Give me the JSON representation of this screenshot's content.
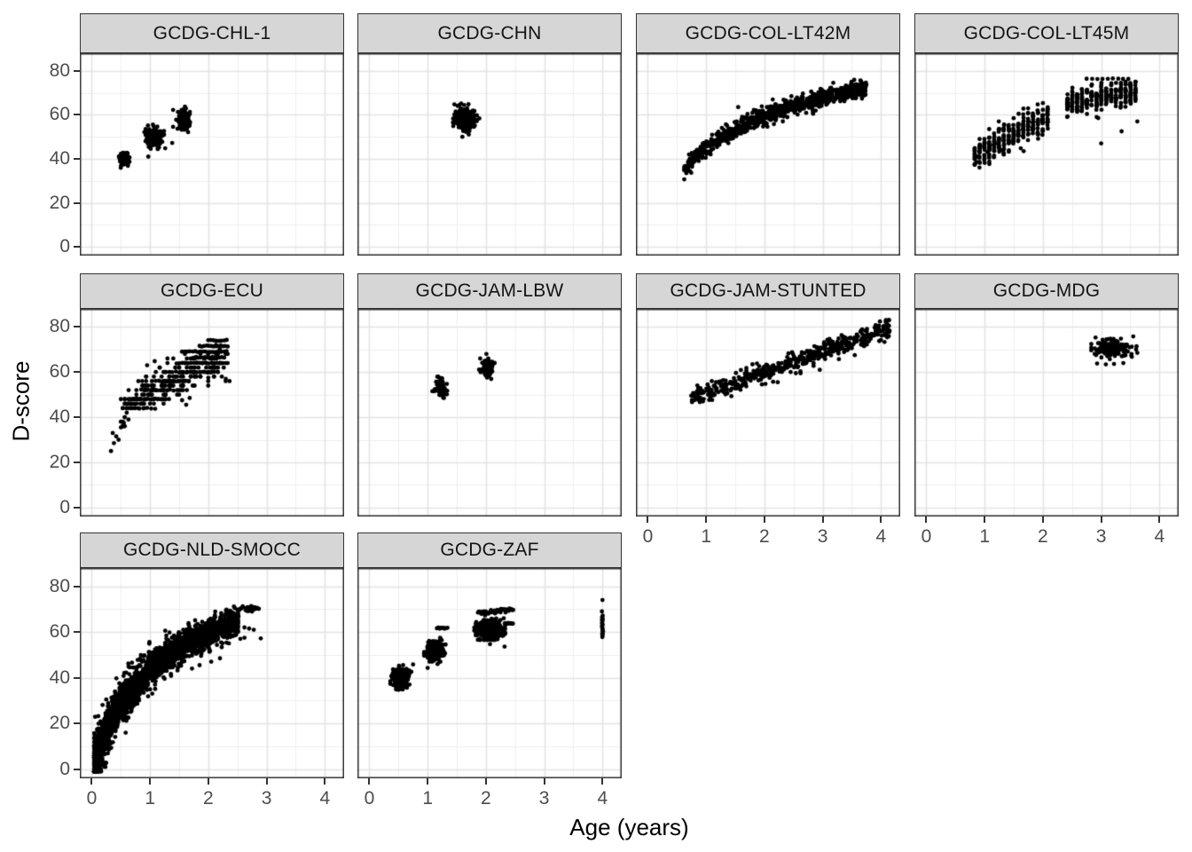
{
  "figure": {
    "xlabel": "Age (years)",
    "ylabel": "D-score"
  },
  "colors": {
    "background": "#FFFFFF",
    "strip_fill": "#D6D6D6",
    "panel_border": "#333333",
    "grid_major": "#E4E4E4",
    "grid_minor": "#F0F0F0",
    "point": "#000000",
    "tick_mark": "#333333",
    "tick_text": "#4D4D4D",
    "title_text": "#000000"
  },
  "chart_data": {
    "type": "scatter",
    "title": "",
    "xlabel": "Age (years)",
    "ylabel": "D-score",
    "x_ticks": [
      0,
      1,
      2,
      3,
      4
    ],
    "y_ticks": [
      0,
      20,
      40,
      60,
      80
    ],
    "x_minor": [
      0.5,
      1.5,
      2.5,
      3.5
    ],
    "y_minor": [
      10,
      30,
      50,
      70
    ],
    "xlim": [
      -0.205,
      4.33
    ],
    "ylim": [
      -4,
      88
    ],
    "grid": true,
    "legend": false,
    "facets": [
      {
        "label": "GCDG-CHL-1",
        "row": 0,
        "col": 0,
        "x_axis": false,
        "y_axis": true,
        "clusters": [
          {
            "kind": "blob",
            "x": 0.55,
            "y": 39.8,
            "sx": 0.045,
            "sy": 1.4,
            "n": 70
          },
          {
            "kind": "blob",
            "x": 1.07,
            "y": 49.5,
            "sx": 0.075,
            "sy": 2.1,
            "n": 140
          },
          {
            "kind": "blob",
            "x": 1.58,
            "y": 57.5,
            "sx": 0.065,
            "sy": 2.5,
            "n": 120
          },
          {
            "kind": "pts",
            "pts": [
              [
                0.97,
                41
              ],
              [
                1.38,
                47.2
              ],
              [
                1.26,
                44.8
              ],
              [
                1.13,
                44.5
              ]
            ]
          }
        ]
      },
      {
        "label": "GCDG-CHN",
        "row": 0,
        "col": 1,
        "x_axis": false,
        "y_axis": false,
        "clusters": [
          {
            "kind": "blob",
            "x": 1.63,
            "y": 58,
            "sx": 0.085,
            "sy": 2.6,
            "n": 320,
            "clampX": [
              1.36,
              1.92
            ],
            "clampY": [
              50,
              66
            ]
          }
        ]
      },
      {
        "label": "GCDG-COL-LT42M",
        "row": 0,
        "col": 2,
        "x_axis": false,
        "y_axis": false,
        "clusters": [
          {
            "kind": "band",
            "x0": 0.62,
            "x1": 3.75,
            "n": 850,
            "sy": 2.0,
            "f": [
              "log",
              44.9,
              20.7
            ],
            "xpow": 0.85
          },
          {
            "kind": "pts",
            "pts": [
              [
                1.55,
                63.5
              ],
              [
                0.66,
                33.5
              ],
              [
                0.72,
                34.5
              ]
            ]
          }
        ]
      },
      {
        "label": "GCDG-COL-LT45M",
        "row": 0,
        "col": 3,
        "x_axis": false,
        "y_axis": false,
        "clusters": [
          {
            "kind": "columns",
            "x0": 0.83,
            "step": 0.0833,
            "k": 16,
            "nper": 17,
            "sy": 3.3,
            "f": [
              "lin",
              31.5,
              13
            ],
            "clampY": [
              36,
              68
            ]
          },
          {
            "kind": "columns",
            "x0": 2.42,
            "step": 0.0833,
            "k": 15,
            "nper": 18,
            "sy": 2.7,
            "f": [
              "lin",
              55,
              4.2
            ],
            "clampY": [
              59,
              75
            ]
          },
          {
            "kind": "hrow",
            "y": 76.5,
            "x0": 2.75,
            "x1": 3.55,
            "step": 0.09
          },
          {
            "kind": "pts",
            "pts": [
              [
                0.86,
                38.5
              ],
              [
                0.88,
                41
              ],
              [
                1.05,
                43
              ],
              [
                1.3,
                44
              ],
              [
                1.33,
                42
              ],
              [
                1.62,
                44.8
              ],
              [
                1.67,
                43.5
              ],
              [
                1.23,
                47
              ],
              [
                3.0,
                47
              ],
              [
                3.35,
                52.5
              ],
              [
                3.62,
                57
              ],
              [
                2.95,
                58.5
              ]
            ]
          }
        ]
      },
      {
        "label": "GCDG-ECU",
        "row": 1,
        "col": 0,
        "x_axis": false,
        "y_axis": true,
        "clusters": [
          {
            "kind": "band",
            "x0": 0.5,
            "x1": 2.35,
            "n": 240,
            "sy": 4.2,
            "f": [
              "log",
              52,
              16
            ],
            "snapY": 2,
            "snapX": 0.0333
          },
          {
            "kind": "hrow",
            "y": 74,
            "x0": 2.0,
            "x1": 2.32,
            "step": 0.045
          },
          {
            "kind": "hrow",
            "y": 71.5,
            "x0": 1.85,
            "x1": 2.35,
            "step": 0.04
          },
          {
            "kind": "hrow",
            "y": 69,
            "x0": 1.55,
            "x1": 2.35,
            "step": 0.045
          },
          {
            "kind": "hrow",
            "y": 66.5,
            "x0": 1.75,
            "x1": 2.3,
            "step": 0.04
          },
          {
            "kind": "hrow",
            "y": 64,
            "x0": 1.45,
            "x1": 2.28,
            "step": 0.05
          },
          {
            "kind": "hrow",
            "y": 60,
            "x0": 1.38,
            "x1": 2.2,
            "step": 0.06
          },
          {
            "kind": "hrow",
            "y": 56,
            "x0": 1.1,
            "x1": 1.65,
            "step": 0.05
          },
          {
            "kind": "hrow",
            "y": 52,
            "x0": 0.85,
            "x1": 1.45,
            "step": 0.055
          },
          {
            "kind": "hrow",
            "y": 48,
            "x0": 0.72,
            "x1": 1.35,
            "step": 0.06
          },
          {
            "kind": "hrow",
            "y": 44,
            "x0": 0.6,
            "x1": 1.1,
            "step": 0.07
          },
          {
            "kind": "pts",
            "pts": [
              [
                0.33,
                25
              ],
              [
                0.38,
                28.5
              ],
              [
                0.42,
                31.5
              ],
              [
                0.36,
                33
              ],
              [
                0.5,
                35.5
              ],
              [
                0.46,
                30
              ],
              [
                0.55,
                37.5
              ],
              [
                0.63,
                39
              ],
              [
                0.95,
                63
              ],
              [
                1.08,
                64.8
              ],
              [
                1.55,
                47.5
              ],
              [
                1.68,
                48.5
              ],
              [
                1.62,
                45.5
              ],
              [
                2.0,
                57.5
              ],
              [
                2.3,
                57
              ]
            ]
          }
        ]
      },
      {
        "label": "GCDG-JAM-LBW",
        "row": 1,
        "col": 1,
        "x_axis": false,
        "y_axis": false,
        "clusters": [
          {
            "kind": "blob",
            "x": 1.22,
            "y": 53,
            "sx": 0.05,
            "sy": 2.0,
            "n": 75,
            "clampY": [
              48.5,
              58
            ]
          },
          {
            "kind": "blob",
            "x": 2.03,
            "y": 62,
            "sx": 0.05,
            "sy": 2.5,
            "n": 85,
            "clampY": [
              56,
              68
            ]
          },
          {
            "kind": "pts",
            "pts": [
              [
                1.08,
                51.5
              ]
            ]
          }
        ]
      },
      {
        "label": "GCDG-JAM-STUNTED",
        "row": 1,
        "col": 2,
        "x_axis": true,
        "y_axis": false,
        "clusters": [
          {
            "kind": "band",
            "x0": 0.72,
            "x1": 4.15,
            "n": 520,
            "sy": 2.1,
            "f": [
              "lin",
              41.5,
              9.2
            ],
            "xpow": 0.85,
            "clampY": [
              44,
              83
            ]
          },
          {
            "kind": "pts",
            "pts": [
              [
                2.45,
                60
              ],
              [
                2.62,
                59.5
              ],
              [
                2.95,
                61
              ],
              [
                3.55,
                67.5
              ]
            ]
          }
        ]
      },
      {
        "label": "GCDG-MDG",
        "row": 1,
        "col": 3,
        "x_axis": true,
        "y_axis": false,
        "clusters": [
          {
            "kind": "blob",
            "x": 3.2,
            "y": 70.3,
            "sx": 0.16,
            "sy": 1.9,
            "n": 175,
            "clampX": [
              2.83,
              3.62
            ],
            "clampY": [
              64.8,
              76.5
            ]
          },
          {
            "kind": "pts",
            "pts": [
              [
                2.93,
                63.8
              ],
              [
                3.08,
                63.4
              ],
              [
                3.22,
                63.6
              ],
              [
                3.38,
                64
              ],
              [
                3.55,
                75.8
              ]
            ]
          }
        ]
      },
      {
        "label": "GCDG-NLD-SMOCC",
        "row": 2,
        "col": 0,
        "x_axis": true,
        "y_axis": true,
        "clusters": [
          {
            "kind": "band",
            "x0": 0.04,
            "x1": 2.52,
            "n": 2100,
            "f": [
              "mm",
              95,
              1.2
            ],
            "sy": "var",
            "sy0": 3,
            "sy1": 3.2,
            "syk": 1.3,
            "xpow": 1.45,
            "clampY": [
              -1,
              86
            ]
          },
          {
            "kind": "band",
            "x0": 2.5,
            "x1": 2.88,
            "n": 30,
            "sy": 0.5,
            "f": [
              "lin",
              62.5,
              2.8
            ]
          },
          {
            "kind": "pts",
            "pts": [
              [
                2.62,
                62
              ],
              [
                2.7,
                61.5
              ],
              [
                2.78,
                61
              ],
              [
                2.55,
                57
              ],
              [
                2.62,
                57.5
              ],
              [
                2.9,
                57.2
              ],
              [
                2.05,
                47
              ],
              [
                2.2,
                48.5
              ],
              [
                1.85,
                45.5
              ],
              [
                1.72,
                44
              ]
            ]
          }
        ]
      },
      {
        "label": "GCDG-ZAF",
        "row": 2,
        "col": 1,
        "x_axis": true,
        "y_axis": false,
        "clusters": [
          {
            "kind": "blob",
            "x": 0.53,
            "y": 39.8,
            "sx": 0.07,
            "sy": 2.1,
            "n": 230,
            "clampX": [
              0.36,
              0.72
            ],
            "clampY": [
              34.5,
              45.5
            ]
          },
          {
            "kind": "blob",
            "x": 1.13,
            "y": 52,
            "sx": 0.075,
            "sy": 2.2,
            "n": 260,
            "clampX": [
              0.94,
              1.33
            ],
            "clampY": [
              47,
              57.5
            ]
          },
          {
            "kind": "hrow",
            "y": 61.7,
            "x0": 1.16,
            "x1": 1.34,
            "step": 0.022
          },
          {
            "kind": "blob",
            "x": 2.06,
            "y": 61.3,
            "sx": 0.11,
            "sy": 2.0,
            "n": 430,
            "clampX": [
              1.8,
              2.33
            ],
            "clampY": [
              56.5,
              66
            ]
          },
          {
            "kind": "band",
            "x0": 1.86,
            "x1": 2.47,
            "n": 42,
            "sy": 0.55,
            "f": [
              "lin",
              64.4,
              2.2
            ]
          },
          {
            "kind": "hrow",
            "y": 63.8,
            "x0": 2.32,
            "x1": 2.46,
            "step": 0.02
          },
          {
            "kind": "vcol",
            "x": 4.0,
            "y0": 57.8,
            "y1": 67,
            "n": 16
          },
          {
            "kind": "pts",
            "pts": [
              [
                4.0,
                74
              ],
              [
                3.99,
                69
              ],
              [
                1.0,
                44.3
              ],
              [
                1.17,
                46
              ],
              [
                2.07,
                54.7
              ],
              [
                2.32,
                53.6
              ],
              [
                0.75,
                45.8
              ]
            ]
          }
        ]
      }
    ]
  }
}
